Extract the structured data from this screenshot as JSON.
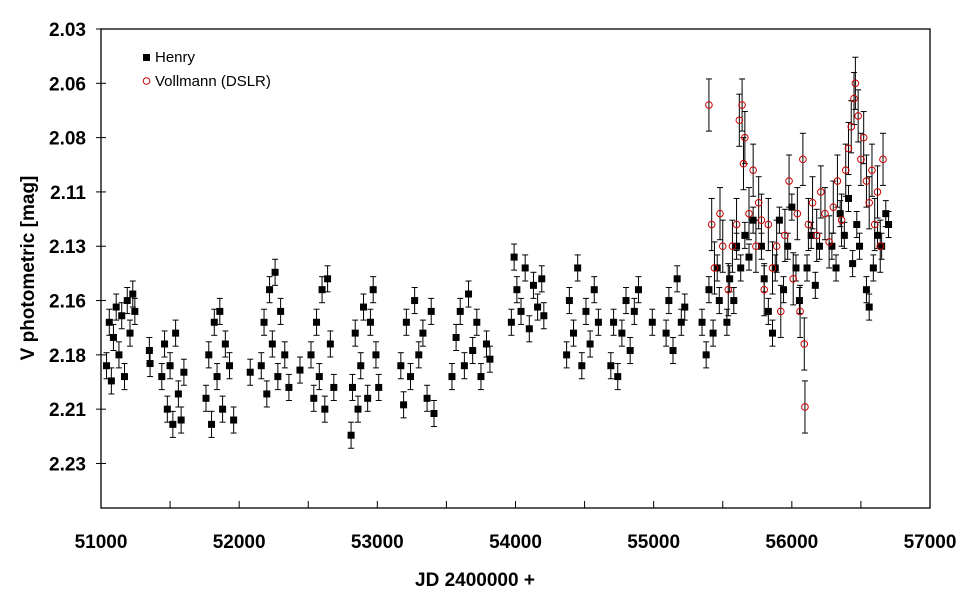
{
  "chart_data": {
    "type": "scatter",
    "title": "",
    "xlabel": "JD 2400000 +",
    "ylabel": "V photometric [mag]",
    "xlim": [
      51000,
      57000
    ],
    "ylim": [
      2.03,
      2.2505
    ],
    "y_inverted": true,
    "grid": false,
    "legend_placement": "top-left",
    "x_ticks": [
      51000,
      52000,
      53000,
      54000,
      55000,
      56000,
      57000
    ],
    "x_tick_labels": [
      "51000",
      "52000",
      "53000",
      "54000",
      "55000",
      "56000",
      "57000"
    ],
    "y_ticks": [
      2.03,
      2.055,
      2.08,
      2.105,
      2.13,
      2.155,
      2.18,
      2.205,
      2.23
    ],
    "y_tick_labels": [
      "2.03",
      "2.06",
      "2.08",
      "2.11",
      "2.13",
      "2.16",
      "2.18",
      "2.21",
      "2.23"
    ],
    "series": [
      {
        "name": "Henry",
        "marker": "filled-square",
        "color": "#000000",
        "error": 0.006,
        "points": [
          [
            51040,
            2.185
          ],
          [
            51060,
            2.165
          ],
          [
            51075,
            2.192
          ],
          [
            51090,
            2.172
          ],
          [
            51110,
            2.158
          ],
          [
            51130,
            2.18
          ],
          [
            51150,
            2.162
          ],
          [
            51170,
            2.19
          ],
          [
            51190,
            2.155
          ],
          [
            51210,
            2.17
          ],
          [
            51230,
            2.152
          ],
          [
            51245,
            2.16
          ],
          [
            51350,
            2.178
          ],
          [
            51355,
            2.184
          ],
          [
            51440,
            2.19
          ],
          [
            51460,
            2.175
          ],
          [
            51480,
            2.205
          ],
          [
            51500,
            2.185
          ],
          [
            51520,
            2.212
          ],
          [
            51540,
            2.17
          ],
          [
            51560,
            2.198
          ],
          [
            51580,
            2.21
          ],
          [
            51600,
            2.188
          ],
          [
            51760,
            2.2
          ],
          [
            51780,
            2.18
          ],
          [
            51800,
            2.212
          ],
          [
            51820,
            2.165
          ],
          [
            51840,
            2.19
          ],
          [
            51860,
            2.16
          ],
          [
            51880,
            2.205
          ],
          [
            51900,
            2.175
          ],
          [
            51930,
            2.185
          ],
          [
            51960,
            2.21
          ],
          [
            52080,
            2.188
          ],
          [
            52160,
            2.185
          ],
          [
            52180,
            2.165
          ],
          [
            52200,
            2.198
          ],
          [
            52220,
            2.15
          ],
          [
            52240,
            2.175
          ],
          [
            52260,
            2.142
          ],
          [
            52280,
            2.19
          ],
          [
            52300,
            2.16
          ],
          [
            52330,
            2.18
          ],
          [
            52360,
            2.195
          ],
          [
            52440,
            2.187
          ],
          [
            52520,
            2.18
          ],
          [
            52540,
            2.2
          ],
          [
            52560,
            2.165
          ],
          [
            52580,
            2.19
          ],
          [
            52600,
            2.15
          ],
          [
            52620,
            2.205
          ],
          [
            52640,
            2.145
          ],
          [
            52660,
            2.175
          ],
          [
            52685,
            2.195
          ],
          [
            52810,
            2.217
          ],
          [
            52820,
            2.195
          ],
          [
            52840,
            2.17
          ],
          [
            52860,
            2.205
          ],
          [
            52880,
            2.185
          ],
          [
            52900,
            2.158
          ],
          [
            52930,
            2.2
          ],
          [
            52950,
            2.165
          ],
          [
            52970,
            2.15
          ],
          [
            52990,
            2.18
          ],
          [
            53010,
            2.195
          ],
          [
            53170,
            2.185
          ],
          [
            53190,
            2.203
          ],
          [
            53210,
            2.165
          ],
          [
            53240,
            2.19
          ],
          [
            53270,
            2.155
          ],
          [
            53300,
            2.18
          ],
          [
            53330,
            2.17
          ],
          [
            53360,
            2.2
          ],
          [
            53390,
            2.16
          ],
          [
            53410,
            2.207
          ],
          [
            53540,
            2.19
          ],
          [
            53570,
            2.172
          ],
          [
            53600,
            2.16
          ],
          [
            53630,
            2.185
          ],
          [
            53660,
            2.152
          ],
          [
            53690,
            2.178
          ],
          [
            53720,
            2.165
          ],
          [
            53750,
            2.19
          ],
          [
            53790,
            2.175
          ],
          [
            53815,
            2.182
          ],
          [
            53970,
            2.165
          ],
          [
            53990,
            2.135
          ],
          [
            54010,
            2.15
          ],
          [
            54040,
            2.16
          ],
          [
            54070,
            2.14
          ],
          [
            54100,
            2.168
          ],
          [
            54130,
            2.148
          ],
          [
            54160,
            2.158
          ],
          [
            54190,
            2.145
          ],
          [
            54205,
            2.162
          ],
          [
            54370,
            2.18
          ],
          [
            54390,
            2.155
          ],
          [
            54420,
            2.17
          ],
          [
            54450,
            2.14
          ],
          [
            54480,
            2.185
          ],
          [
            54510,
            2.16
          ],
          [
            54540,
            2.175
          ],
          [
            54570,
            2.15
          ],
          [
            54600,
            2.165
          ],
          [
            54690,
            2.185
          ],
          [
            54710,
            2.165
          ],
          [
            54740,
            2.19
          ],
          [
            54770,
            2.17
          ],
          [
            54800,
            2.155
          ],
          [
            54830,
            2.178
          ],
          [
            54860,
            2.16
          ],
          [
            54890,
            2.15
          ],
          [
            54990,
            2.165
          ],
          [
            55090,
            2.17
          ],
          [
            55110,
            2.155
          ],
          [
            55140,
            2.178
          ],
          [
            55170,
            2.145
          ],
          [
            55200,
            2.165
          ],
          [
            55225,
            2.158
          ],
          [
            55350,
            2.165
          ],
          [
            55380,
            2.18
          ],
          [
            55400,
            2.15
          ],
          [
            55430,
            2.17
          ],
          [
            55460,
            2.14
          ],
          [
            55475,
            2.155
          ],
          [
            55530,
            2.165
          ],
          [
            55550,
            2.145
          ],
          [
            55580,
            2.155
          ],
          [
            55600,
            2.13
          ],
          [
            55630,
            2.14
          ],
          [
            55660,
            2.125
          ],
          [
            55690,
            2.135
          ],
          [
            55720,
            2.118
          ],
          [
            55780,
            2.13
          ],
          [
            55800,
            2.145
          ],
          [
            55830,
            2.16
          ],
          [
            55860,
            2.17
          ],
          [
            55880,
            2.14
          ],
          [
            55910,
            2.118
          ],
          [
            55940,
            2.15
          ],
          [
            55970,
            2.13
          ],
          [
            56000,
            2.112
          ],
          [
            56030,
            2.14
          ],
          [
            56055,
            2.155
          ],
          [
            56110,
            2.14
          ],
          [
            56140,
            2.125
          ],
          [
            56170,
            2.148
          ],
          [
            56200,
            2.13
          ],
          [
            56290,
            2.13
          ],
          [
            56320,
            2.14
          ],
          [
            56350,
            2.115
          ],
          [
            56380,
            2.125
          ],
          [
            56410,
            2.108
          ],
          [
            56440,
            2.138
          ],
          [
            56470,
            2.12
          ],
          [
            56490,
            2.13
          ],
          [
            56540,
            2.15
          ],
          [
            56560,
            2.158
          ],
          [
            56590,
            2.14
          ],
          [
            56620,
            2.125
          ],
          [
            56650,
            2.13
          ],
          [
            56680,
            2.115
          ],
          [
            56700,
            2.12
          ]
        ]
      },
      {
        "name": "Vollmann (DSLR)",
        "marker": "open-circle",
        "color": "#cc0000",
        "error": 0.012,
        "points": [
          [
            55400,
            2.065
          ],
          [
            55420,
            2.12
          ],
          [
            55440,
            2.14
          ],
          [
            55480,
            2.115
          ],
          [
            55500,
            2.13
          ],
          [
            55540,
            2.15
          ],
          [
            55570,
            2.13
          ],
          [
            55600,
            2.12
          ],
          [
            55620,
            2.072
          ],
          [
            55640,
            2.065
          ],
          [
            55650,
            2.092
          ],
          [
            55660,
            2.08
          ],
          [
            55690,
            2.115
          ],
          [
            55720,
            2.095
          ],
          [
            55740,
            2.13
          ],
          [
            55760,
            2.11
          ],
          [
            55780,
            2.118
          ],
          [
            55800,
            2.15
          ],
          [
            55830,
            2.12
          ],
          [
            55860,
            2.14
          ],
          [
            55890,
            2.13
          ],
          [
            55920,
            2.16
          ],
          [
            55950,
            2.125
          ],
          [
            55980,
            2.1
          ],
          [
            56010,
            2.145
          ],
          [
            56040,
            2.115
          ],
          [
            56060,
            2.16
          ],
          [
            56080,
            2.09
          ],
          [
            56090,
            2.175
          ],
          [
            56095,
            2.204
          ],
          [
            56120,
            2.12
          ],
          [
            56150,
            2.11
          ],
          [
            56180,
            2.125
          ],
          [
            56210,
            2.105
          ],
          [
            56240,
            2.115
          ],
          [
            56270,
            2.128
          ],
          [
            56300,
            2.112
          ],
          [
            56330,
            2.1
          ],
          [
            56360,
            2.118
          ],
          [
            56390,
            2.095
          ],
          [
            56410,
            2.085
          ],
          [
            56430,
            2.075
          ],
          [
            56450,
            2.062
          ],
          [
            56460,
            2.055
          ],
          [
            56480,
            2.07
          ],
          [
            56500,
            2.09
          ],
          [
            56520,
            2.08
          ],
          [
            56540,
            2.1
          ],
          [
            56560,
            2.11
          ],
          [
            56580,
            2.095
          ],
          [
            56600,
            2.12
          ],
          [
            56620,
            2.105
          ],
          [
            56640,
            2.13
          ],
          [
            56660,
            2.09
          ]
        ]
      }
    ]
  }
}
